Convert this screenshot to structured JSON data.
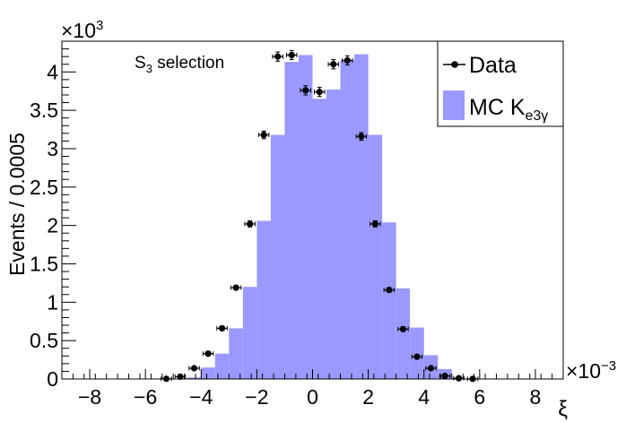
{
  "chart_data": {
    "type": "bar",
    "annotation": {
      "main": "S",
      "sub": "3",
      "rest": " selection"
    },
    "xlabel": "ξ",
    "ylabel": "Events / 0.0005",
    "y_multiplier": {
      "base": "×10",
      "exp": "3"
    },
    "x_multiplier": {
      "base": "×10",
      "exp": "−3"
    },
    "xlim": [
      -9,
      9
    ],
    "ylim": [
      0,
      4.4
    ],
    "bin_width": 0.5,
    "xticks": [
      -8,
      -6,
      -4,
      -2,
      0,
      2,
      4,
      6,
      8
    ],
    "xtick_labels": [
      "−8",
      "−6",
      "−4",
      "−2",
      "0",
      "2",
      "4",
      "6",
      "8"
    ],
    "yticks": [
      0,
      0.5,
      1,
      1.5,
      2,
      2.5,
      3,
      3.5,
      4
    ],
    "ytick_labels": [
      "0",
      "0.5",
      "1",
      "1.5",
      "2",
      "2.5",
      "3",
      "3.5",
      "4"
    ],
    "legend": [
      {
        "name": "Data",
        "kind": "marker"
      },
      {
        "name": "MC K",
        "sub": "e3γ",
        "kind": "fill"
      }
    ],
    "legend_position": "top-right",
    "colors": {
      "mc_fill": "#9999ff",
      "data": "#000000"
    },
    "series": [
      {
        "name": "MC",
        "bin_low": [
          -4.5,
          -4.0,
          -3.5,
          -3.0,
          -2.5,
          -2.0,
          -1.5,
          -1.0,
          -0.5,
          0.0,
          0.5,
          1.0,
          1.5,
          2.0,
          2.5,
          3.0,
          3.5,
          4.0,
          4.5
        ],
        "values": [
          0.02,
          0.15,
          0.33,
          0.66,
          1.2,
          2.06,
          3.18,
          4.13,
          4.22,
          3.65,
          3.77,
          4.15,
          4.23,
          3.18,
          2.04,
          1.18,
          0.67,
          0.31,
          0.13
        ]
      },
      {
        "name": "Data",
        "x": [
          -5.25,
          -4.75,
          -4.25,
          -3.75,
          -3.25,
          -2.75,
          -2.25,
          -1.75,
          -1.25,
          -0.75,
          -0.25,
          0.25,
          0.75,
          1.25,
          1.75,
          2.25,
          2.75,
          3.25,
          3.75,
          4.25,
          4.75,
          5.25,
          5.75
        ],
        "values": [
          0.003,
          0.03,
          0.14,
          0.33,
          0.66,
          1.19,
          2.02,
          3.18,
          4.2,
          4.22,
          3.76,
          3.74,
          4.1,
          4.15,
          3.16,
          2.02,
          1.16,
          0.65,
          0.29,
          0.14,
          0.04,
          0.01,
          0.002
        ],
        "errors": [
          0.005,
          0.01,
          0.02,
          0.03,
          0.03,
          0.03,
          0.04,
          0.05,
          0.06,
          0.06,
          0.06,
          0.06,
          0.06,
          0.06,
          0.05,
          0.04,
          0.03,
          0.03,
          0.02,
          0.02,
          0.01,
          0.005,
          0.005
        ]
      }
    ]
  }
}
